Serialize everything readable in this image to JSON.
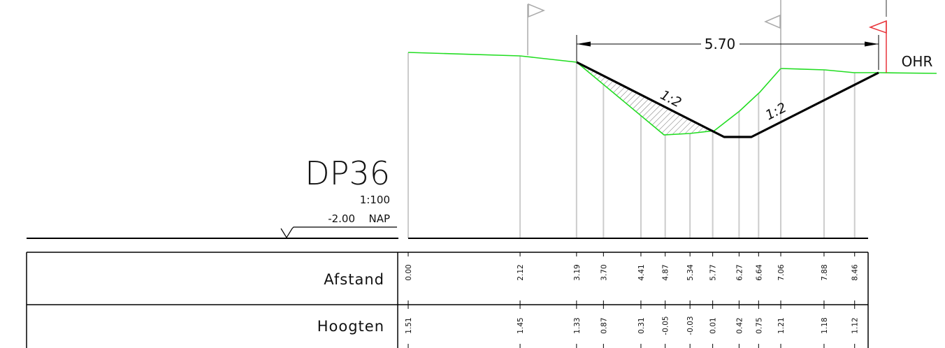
{
  "title": "DP36",
  "scale": "1:100",
  "reference_level": {
    "value": "-2.00",
    "label": "NAP"
  },
  "water_label": "OHR",
  "dimension": "5.70",
  "slope_labels": [
    "1:2",
    "1:2"
  ],
  "rows": {
    "distance_label": "Afstand",
    "height_label": "Hoogten"
  },
  "stations": [
    {
      "afstand": "0.00",
      "hoogte": "1.51"
    },
    {
      "afstand": "2.12",
      "hoogte": "1.45"
    },
    {
      "afstand": "3.19",
      "hoogte": "1.33"
    },
    {
      "afstand": "3.70",
      "hoogte": "0.87"
    },
    {
      "afstand": "4.41",
      "hoogte": "0.31"
    },
    {
      "afstand": "4.87",
      "hoogte": "-0.05"
    },
    {
      "afstand": "5.34",
      "hoogte": "-0.03"
    },
    {
      "afstand": "5.77",
      "hoogte": "0.01"
    },
    {
      "afstand": "6.27",
      "hoogte": "0.42"
    },
    {
      "afstand": "6.64",
      "hoogte": "0.75"
    },
    {
      "afstand": "7.06",
      "hoogte": "1.21"
    },
    {
      "afstand": "7.88",
      "hoogte": "1.18"
    },
    {
      "afstand": "8.46",
      "hoogte": "1.12"
    }
  ],
  "colors": {
    "terrain": "#22dd22",
    "design": "#000000",
    "station_line": "#cccccc",
    "flag_grey": "#aaaaaa",
    "flag_red": "#e8343a"
  }
}
